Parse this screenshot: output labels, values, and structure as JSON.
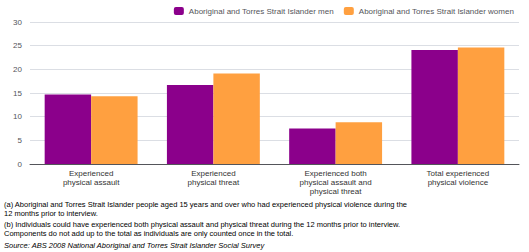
{
  "chart_data": {
    "type": "bar",
    "categories": [
      "Experienced\nphysical assault",
      "Experienced\nphysical threat",
      "Experienced both\nphysical assault and\nphysical threat",
      "Total experienced\nphysical violence"
    ],
    "series": [
      {
        "name": "Aboriginal and Torres Strait Islander men",
        "color": "#8B008B",
        "values": [
          14.7,
          16.7,
          7.5,
          24.1
        ]
      },
      {
        "name": "Aboriginal and Torres Strait Islander women",
        "color": "#FFA040",
        "values": [
          14.3,
          19.1,
          8.8,
          24.6
        ]
      }
    ],
    "ylim": [
      0,
      30
    ],
    "yticks": [
      0,
      5,
      10,
      15,
      20,
      25,
      30
    ],
    "grid": true,
    "legend": "upper right",
    "annotations": [
      "(a) Aboriginal and Torres Strait Islander people aged 15 years and over who had experienced physical violence during the\n12 months prior to interview.",
      "(b) Individuals could have experienced both physical assault and physical threat during the 12 months prior to interview.\nComponents do not add up to the total as individuals are only counted once in the total.",
      "Source: ABS 2008 National Aboriginal and Torres Strait Islander Social Survey"
    ]
  }
}
